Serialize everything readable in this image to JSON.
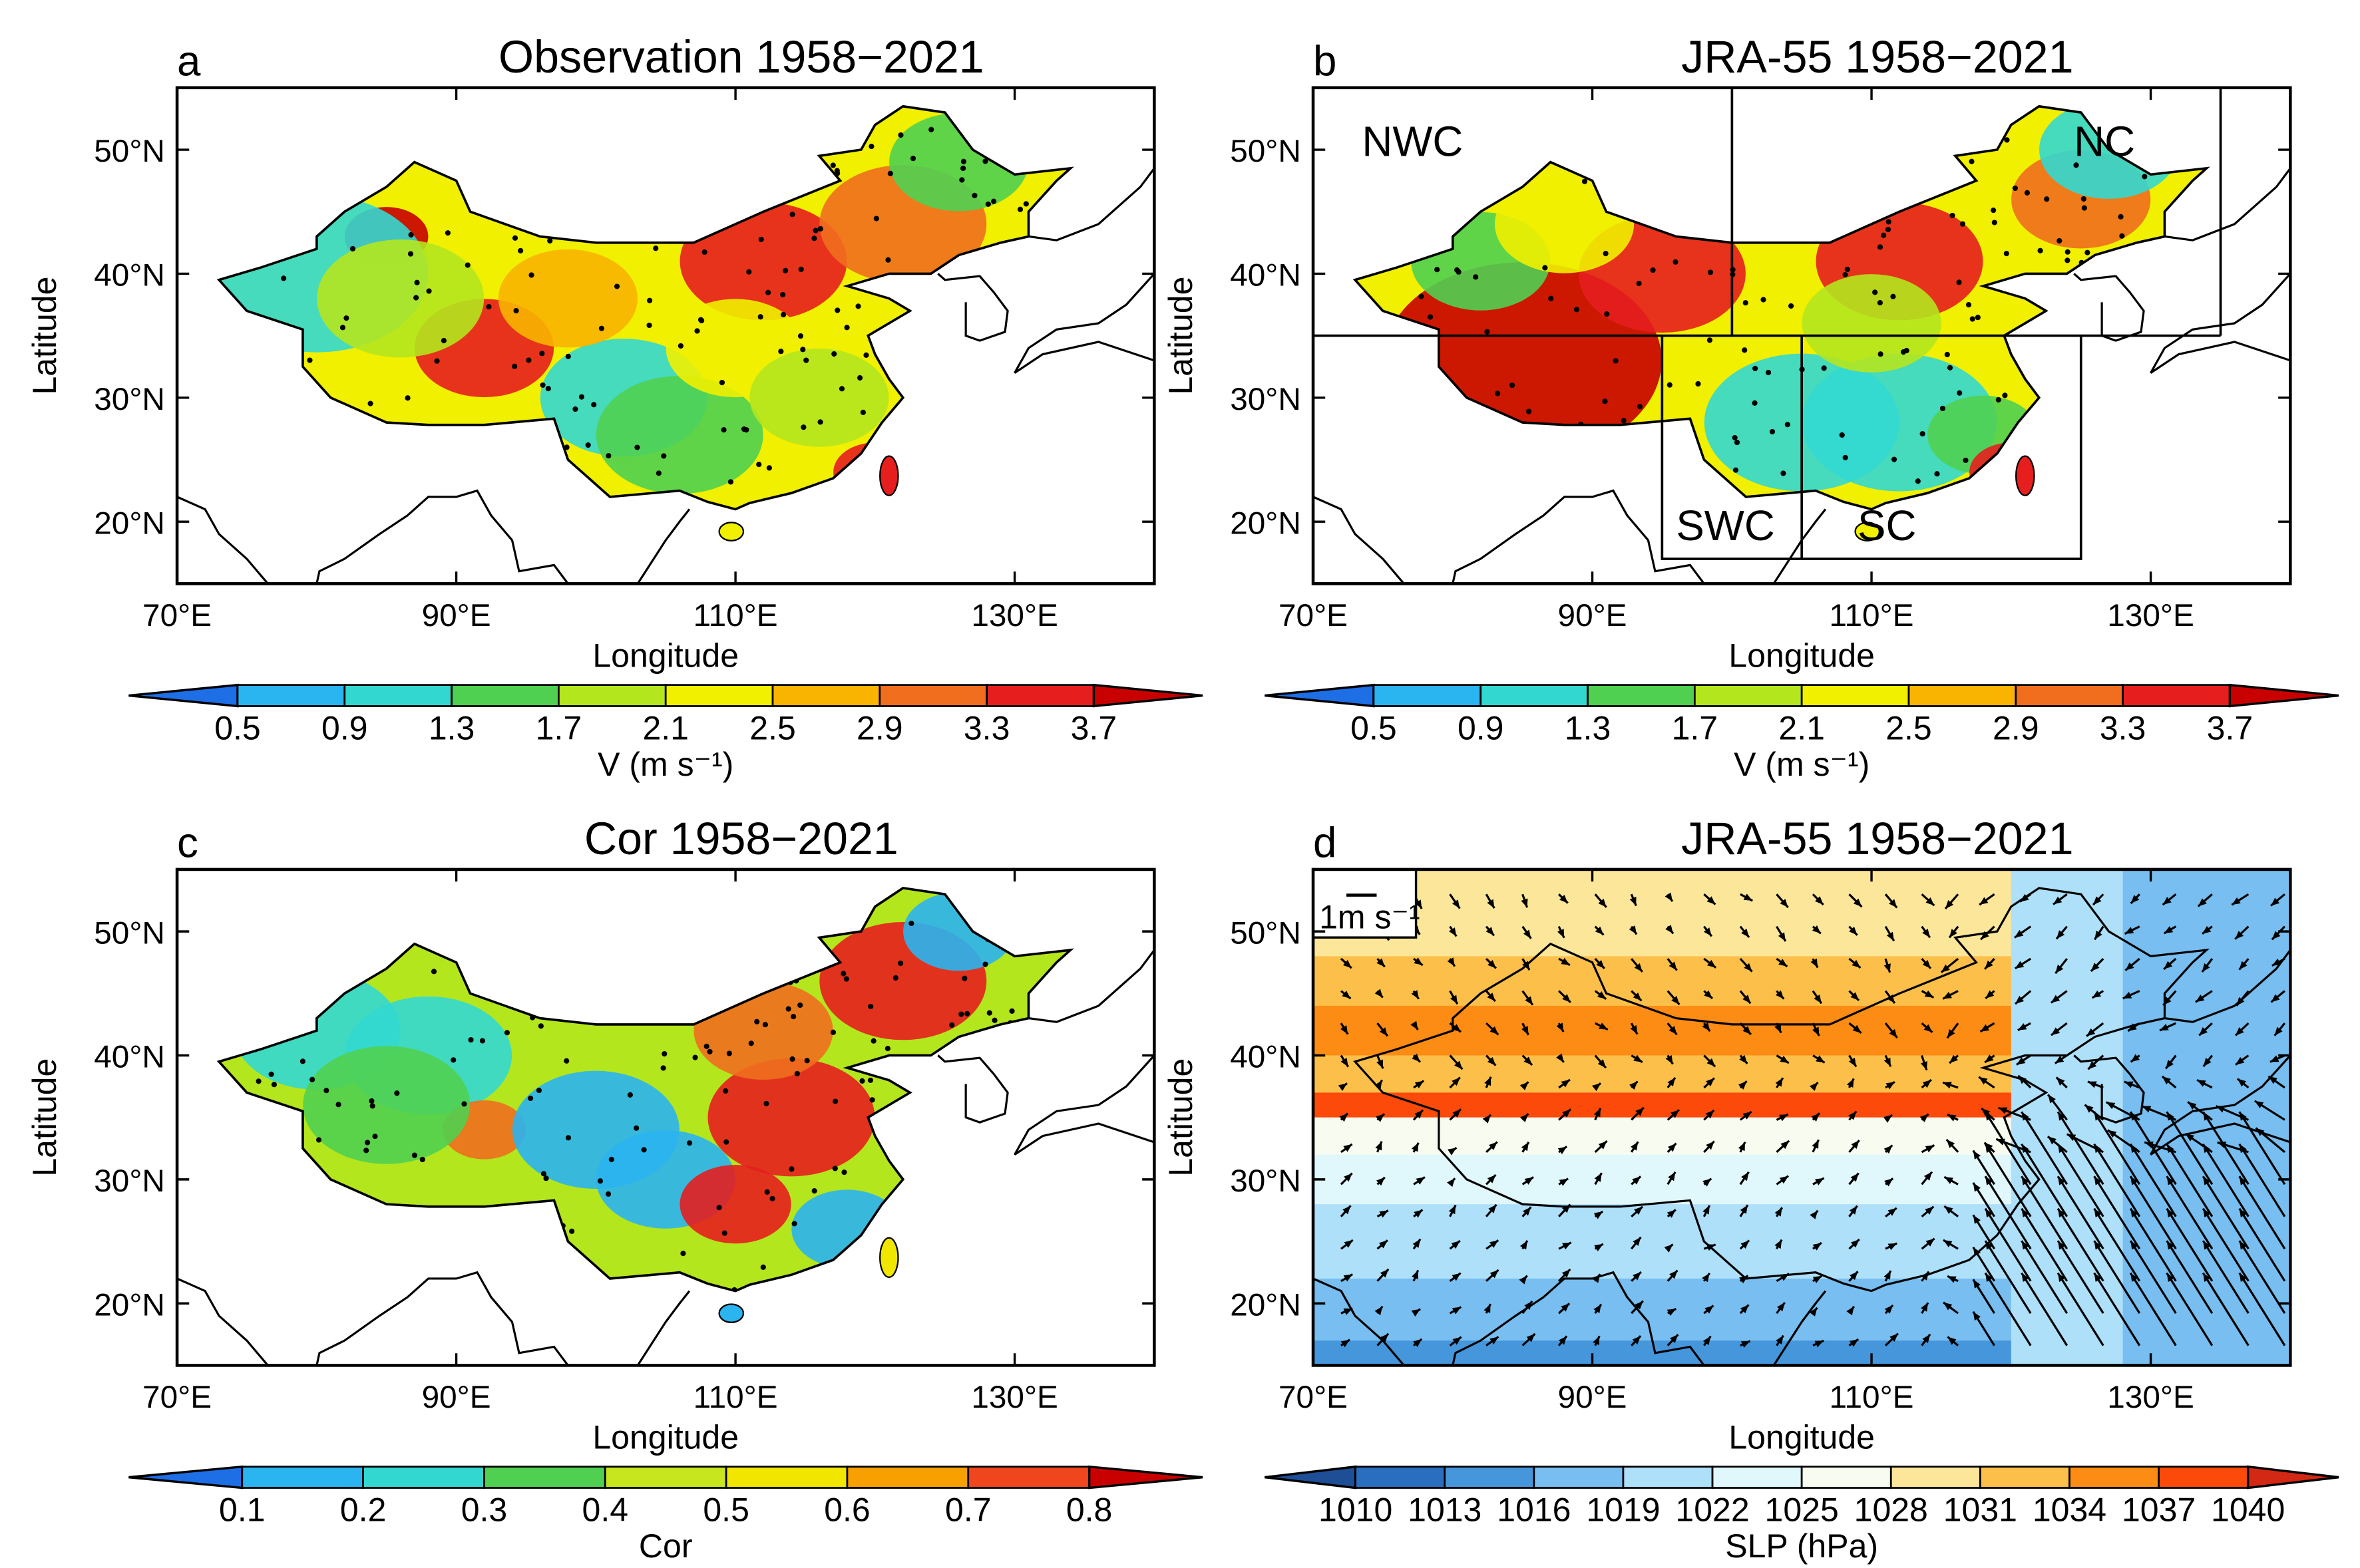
{
  "panels": [
    {
      "letter": "a",
      "title": "Observation 1958−2021",
      "ylabel": "Latitude",
      "xlabel": "Longitude",
      "colorbar": {
        "ticks": [
          "0.5",
          "0.9",
          "1.3",
          "1.7",
          "2.1",
          "2.5",
          "2.9",
          "3.3",
          "3.7"
        ],
        "label": "V (m s⁻¹)",
        "colors": [
          "#1e6ee6",
          "#2ab4f0",
          "#32d8d0",
          "#50d050",
          "#b4e61e",
          "#f0f000",
          "#f8b400",
          "#f06e1e",
          "#e61e1e",
          "#c80000"
        ]
      }
    },
    {
      "letter": "b",
      "title": "JRA-55 1958−2021",
      "ylabel": "Latitude",
      "xlabel": "Longitude",
      "regions": [
        "NWC",
        "NC",
        "SWC",
        "SC"
      ],
      "colorbar": {
        "ticks": [
          "0.5",
          "0.9",
          "1.3",
          "1.7",
          "2.1",
          "2.5",
          "2.9",
          "3.3",
          "3.7"
        ],
        "label": "V (m s⁻¹)",
        "colors": [
          "#1e6ee6",
          "#2ab4f0",
          "#32d8d0",
          "#50d050",
          "#b4e61e",
          "#f0f000",
          "#f8b400",
          "#f06e1e",
          "#e61e1e",
          "#c80000"
        ]
      }
    },
    {
      "letter": "c",
      "title": "Cor 1958−2021",
      "ylabel": "Latitude",
      "xlabel": "Longitude",
      "colorbar": {
        "ticks": [
          "0.1",
          "0.2",
          "0.3",
          "0.4",
          "0.5",
          "0.6",
          "0.7",
          "0.8"
        ],
        "label": "Cor",
        "colors": [
          "#1e6ee6",
          "#2ab4f0",
          "#32d8d0",
          "#50d050",
          "#c8e61e",
          "#f0e600",
          "#f8a000",
          "#f0461e",
          "#c80000"
        ]
      }
    },
    {
      "letter": "d",
      "title": "JRA-55 1958−2021",
      "ylabel": "Latitude",
      "xlabel": "Longitude",
      "reference_vector": "1m s⁻¹",
      "colorbar": {
        "ticks": [
          "1010",
          "1013",
          "1016",
          "1019",
          "1022",
          "1025",
          "1028",
          "1031",
          "1034",
          "1037",
          "1040"
        ],
        "label": "SLP (hPa)",
        "colors": [
          "#1e4e96",
          "#2a6ec0",
          "#4696dc",
          "#78bef0",
          "#aee0fa",
          "#e0f8fc",
          "#f8fcf0",
          "#fce69a",
          "#fcc04a",
          "#fc8c14",
          "#fc4a0a",
          "#d22814"
        ]
      }
    }
  ],
  "axes": {
    "lon_ticks": [
      "70°E",
      "90°E",
      "110°E",
      "130°E"
    ],
    "lat_ticks": [
      "20°N",
      "30°N",
      "40°N",
      "50°N"
    ]
  }
}
